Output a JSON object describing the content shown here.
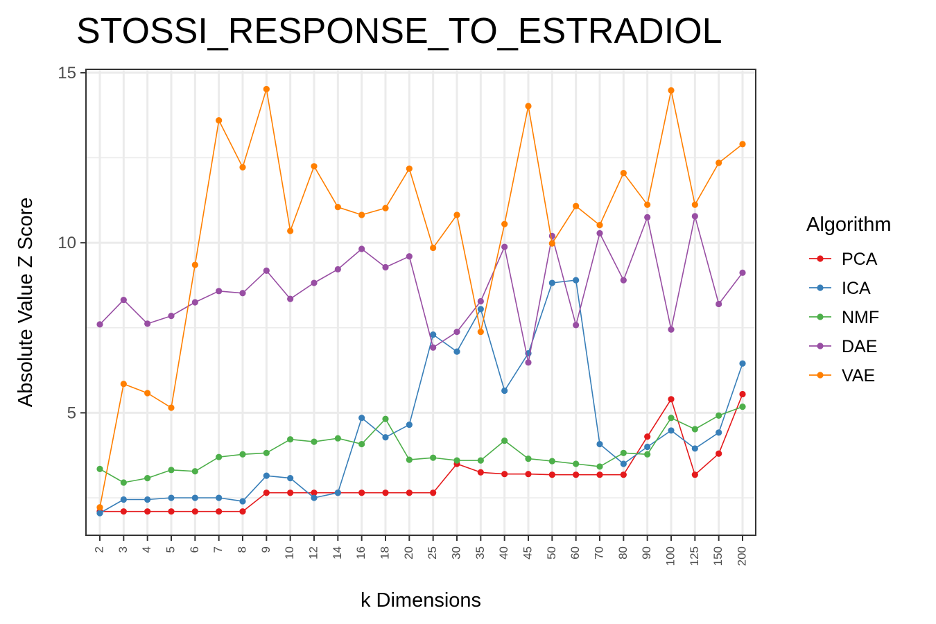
{
  "chart_data": {
    "type": "line",
    "title": "STOSSI_RESPONSE_TO_ESTRADIOL",
    "xlabel": "k Dimensions",
    "ylabel": "Absolute Value Z Score",
    "x_scale": "categorical",
    "categories": [
      "2",
      "3",
      "4",
      "5",
      "6",
      "7",
      "8",
      "9",
      "10",
      "12",
      "14",
      "16",
      "18",
      "20",
      "25",
      "30",
      "35",
      "40",
      "45",
      "50",
      "60",
      "70",
      "80",
      "90",
      "100",
      "125",
      "150",
      "200"
    ],
    "ylim": [
      1.4,
      15.1
    ],
    "yticks": [
      5,
      10,
      15
    ],
    "grid": true,
    "legend": {
      "title": "Algorithm",
      "position": "right"
    },
    "series": [
      {
        "name": "PCA",
        "color": "#e41a1c",
        "values": [
          2.1,
          2.1,
          2.1,
          2.1,
          2.1,
          2.1,
          2.1,
          2.65,
          2.65,
          2.65,
          2.65,
          2.65,
          2.65,
          2.65,
          2.65,
          3.5,
          3.25,
          3.2,
          3.2,
          3.18,
          3.18,
          3.18,
          3.18,
          4.3,
          5.4,
          3.18,
          3.8,
          5.55
        ]
      },
      {
        "name": "ICA",
        "color": "#377eb8",
        "values": [
          2.05,
          2.45,
          2.45,
          2.5,
          2.5,
          2.5,
          2.4,
          3.15,
          3.08,
          2.5,
          2.65,
          4.85,
          4.28,
          4.65,
          7.3,
          6.8,
          8.05,
          5.65,
          6.75,
          8.82,
          8.9,
          4.08,
          3.5,
          4.0,
          4.48,
          3.95,
          4.42,
          6.45
        ]
      },
      {
        "name": "NMF",
        "color": "#4daf4a",
        "values": [
          3.35,
          2.95,
          3.08,
          3.32,
          3.28,
          3.7,
          3.78,
          3.82,
          4.22,
          4.15,
          4.25,
          4.08,
          4.82,
          3.62,
          3.68,
          3.6,
          3.6,
          4.18,
          3.65,
          3.58,
          3.5,
          3.42,
          3.82,
          3.78,
          4.85,
          4.52,
          4.92,
          5.18
        ]
      },
      {
        "name": "DAE",
        "color": "#984ea3",
        "values": [
          7.6,
          8.32,
          7.62,
          7.85,
          8.25,
          8.58,
          8.52,
          9.18,
          8.35,
          8.82,
          9.22,
          9.82,
          9.28,
          9.6,
          6.92,
          7.38,
          8.28,
          9.88,
          6.48,
          10.2,
          7.58,
          10.28,
          8.9,
          10.75,
          7.45,
          10.78,
          8.2,
          9.12
        ]
      },
      {
        "name": "VAE",
        "color": "#ff7f00",
        "values": [
          2.22,
          5.85,
          5.58,
          5.15,
          9.35,
          13.6,
          12.22,
          14.52,
          10.35,
          12.25,
          11.05,
          10.82,
          11.02,
          12.18,
          9.85,
          10.82,
          7.38,
          10.55,
          14.02,
          9.98,
          11.08,
          10.52,
          12.05,
          11.12,
          14.48,
          11.12,
          12.35,
          12.9
        ]
      }
    ]
  }
}
